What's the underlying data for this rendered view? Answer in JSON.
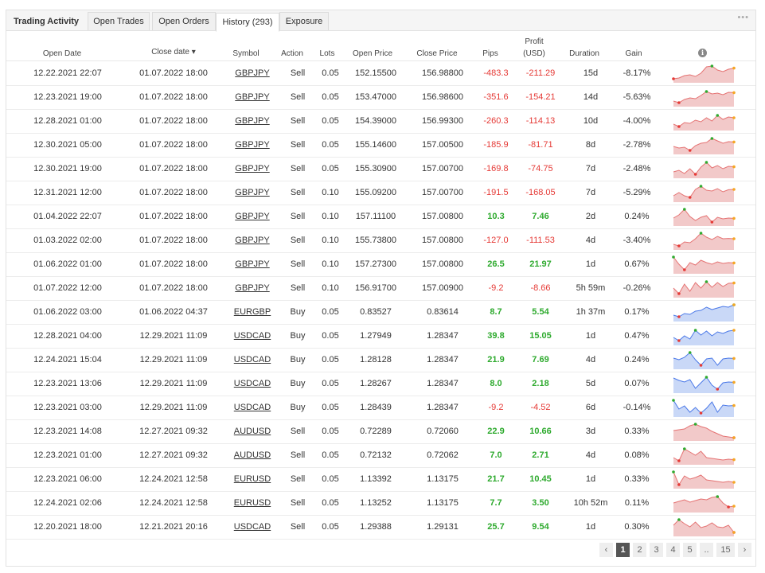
{
  "tabs": [
    "Trading Activity",
    "Open Trades",
    "Open Orders",
    "History (293)",
    "Exposure"
  ],
  "more_label": "•••",
  "columns": {
    "open_date": "Open Date",
    "close_date": "Close date ▾",
    "symbol": "Symbol",
    "action": "Action",
    "lots": "Lots",
    "open_price": "Open Price",
    "close_price": "Close Price",
    "pips": "Pips",
    "profit_line1": "Profit",
    "profit_line2": "(USD)",
    "duration": "Duration",
    "gain": "Gain",
    "info": "i"
  },
  "colors": {
    "negative": "#e53935",
    "positive": "#2eaa2e",
    "sell_fill": "#f2c9c9",
    "buy_fill": "#c9d8f7"
  },
  "rows": [
    {
      "open": "12.22.2021 22:07",
      "close": "01.07.2022 18:00",
      "symbol": "GBPJPY",
      "action": "Sell",
      "lots": "0.05",
      "open_price": "152.15500",
      "close_price": "156.98800",
      "pips": "-483.3",
      "profit": "-211.29",
      "duration": "15d",
      "gain": "-8.17%",
      "spark": [
        0.15,
        0.2,
        0.35,
        0.4,
        0.3,
        0.5,
        0.9,
        0.95,
        0.7,
        0.6,
        0.75,
        0.82
      ]
    },
    {
      "open": "12.23.2021 19:00",
      "close": "01.07.2022 18:00",
      "symbol": "GBPJPY",
      "action": "Sell",
      "lots": "0.05",
      "open_price": "153.47000",
      "close_price": "156.98600",
      "pips": "-351.6",
      "profit": "-154.21",
      "duration": "14d",
      "gain": "-5.63%",
      "spark": [
        0.25,
        0.15,
        0.35,
        0.45,
        0.4,
        0.6,
        0.85,
        0.7,
        0.75,
        0.65,
        0.8,
        0.78
      ]
    },
    {
      "open": "12.28.2021 01:00",
      "close": "01.07.2022 18:00",
      "symbol": "GBPJPY",
      "action": "Sell",
      "lots": "0.05",
      "open_price": "154.39000",
      "close_price": "156.99300",
      "pips": "-260.3",
      "profit": "-114.13",
      "duration": "10d",
      "gain": "-4.00%",
      "spark": [
        0.3,
        0.15,
        0.4,
        0.35,
        0.55,
        0.45,
        0.7,
        0.5,
        0.85,
        0.6,
        0.75,
        0.7
      ]
    },
    {
      "open": "12.30.2021 05:00",
      "close": "01.07.2022 18:00",
      "symbol": "GBPJPY",
      "action": "Sell",
      "lots": "0.05",
      "open_price": "155.14600",
      "close_price": "157.00500",
      "pips": "-185.9",
      "profit": "-81.71",
      "duration": "8d",
      "gain": "-2.78%",
      "spark": [
        0.4,
        0.3,
        0.35,
        0.15,
        0.45,
        0.6,
        0.65,
        0.9,
        0.75,
        0.6,
        0.7,
        0.68
      ]
    },
    {
      "open": "12.30.2021 19:00",
      "close": "01.07.2022 18:00",
      "symbol": "GBPJPY",
      "action": "Sell",
      "lots": "0.05",
      "open_price": "155.30900",
      "close_price": "157.00700",
      "pips": "-169.8",
      "profit": "-74.75",
      "duration": "7d",
      "gain": "-2.48%",
      "spark": [
        0.3,
        0.4,
        0.2,
        0.5,
        0.15,
        0.6,
        0.9,
        0.55,
        0.7,
        0.5,
        0.65,
        0.62
      ]
    },
    {
      "open": "12.31.2021 12:00",
      "close": "01.07.2022 18:00",
      "symbol": "GBPJPY",
      "action": "Sell",
      "lots": "0.10",
      "open_price": "155.09200",
      "close_price": "157.00700",
      "pips": "-191.5",
      "profit": "-168.05",
      "duration": "7d",
      "gain": "-5.29%",
      "spark": [
        0.3,
        0.5,
        0.3,
        0.2,
        0.7,
        0.9,
        0.65,
        0.6,
        0.75,
        0.55,
        0.68,
        0.7
      ]
    },
    {
      "open": "01.04.2022 22:07",
      "close": "01.07.2022 18:00",
      "symbol": "GBPJPY",
      "action": "Sell",
      "lots": "0.10",
      "open_price": "157.11100",
      "close_price": "157.00800",
      "pips": "10.3",
      "profit": "7.46",
      "duration": "2d",
      "gain": "0.24%",
      "spark": [
        0.4,
        0.6,
        0.95,
        0.5,
        0.25,
        0.45,
        0.55,
        0.15,
        0.45,
        0.35,
        0.4,
        0.38
      ]
    },
    {
      "open": "01.03.2022 02:00",
      "close": "01.07.2022 18:00",
      "symbol": "GBPJPY",
      "action": "Sell",
      "lots": "0.10",
      "open_price": "155.73800",
      "close_price": "157.00800",
      "pips": "-127.0",
      "profit": "-111.53",
      "duration": "4d",
      "gain": "-3.40%",
      "spark": [
        0.25,
        0.15,
        0.4,
        0.35,
        0.6,
        0.95,
        0.7,
        0.55,
        0.75,
        0.6,
        0.62,
        0.6
      ]
    },
    {
      "open": "01.06.2022 01:00",
      "close": "01.07.2022 18:00",
      "symbol": "GBPJPY",
      "action": "Sell",
      "lots": "0.10",
      "open_price": "157.27300",
      "close_price": "157.00800",
      "pips": "26.5",
      "profit": "21.97",
      "duration": "1d",
      "gain": "0.67%",
      "spark": [
        0.95,
        0.5,
        0.15,
        0.6,
        0.45,
        0.75,
        0.6,
        0.5,
        0.65,
        0.55,
        0.6,
        0.58
      ]
    },
    {
      "open": "01.07.2022 12:00",
      "close": "01.07.2022 18:00",
      "symbol": "GBPJPY",
      "action": "Sell",
      "lots": "0.10",
      "open_price": "156.91700",
      "close_price": "157.00900",
      "pips": "-9.2",
      "profit": "-8.66",
      "duration": "5h 59m",
      "gain": "-0.26%",
      "spark": [
        0.5,
        0.15,
        0.75,
        0.3,
        0.85,
        0.5,
        0.9,
        0.55,
        0.85,
        0.6,
        0.8,
        0.82
      ]
    },
    {
      "open": "01.06.2022 03:00",
      "close": "01.06.2022 04:37",
      "symbol": "EURGBP",
      "action": "Buy",
      "lots": "0.05",
      "open_price": "0.83527",
      "close_price": "0.83614",
      "pips": "8.7",
      "profit": "5.54",
      "duration": "1h 37m",
      "gain": "0.17%",
      "spark": [
        0.3,
        0.2,
        0.4,
        0.35,
        0.55,
        0.6,
        0.8,
        0.65,
        0.75,
        0.85,
        0.8,
        0.95
      ]
    },
    {
      "open": "12.28.2021 04:00",
      "close": "12.29.2021 11:09",
      "symbol": "USDCAD",
      "action": "Buy",
      "lots": "0.05",
      "open_price": "1.27949",
      "close_price": "1.28347",
      "pips": "39.8",
      "profit": "15.05",
      "duration": "1d",
      "gain": "0.47%",
      "spark": [
        0.4,
        0.2,
        0.5,
        0.3,
        0.85,
        0.55,
        0.8,
        0.5,
        0.75,
        0.65,
        0.8,
        0.85
      ]
    },
    {
      "open": "12.24.2021 15:04",
      "close": "12.29.2021 11:09",
      "symbol": "USDCAD",
      "action": "Buy",
      "lots": "0.05",
      "open_price": "1.28128",
      "close_price": "1.28347",
      "pips": "21.9",
      "profit": "7.69",
      "duration": "4d",
      "gain": "0.24%",
      "spark": [
        0.6,
        0.5,
        0.65,
        0.95,
        0.5,
        0.15,
        0.55,
        0.6,
        0.15,
        0.55,
        0.6,
        0.58
      ]
    },
    {
      "open": "12.23.2021 13:06",
      "close": "12.29.2021 11:09",
      "symbol": "USDCAD",
      "action": "Buy",
      "lots": "0.05",
      "open_price": "1.28267",
      "close_price": "1.28347",
      "pips": "8.0",
      "profit": "2.18",
      "duration": "5d",
      "gain": "0.07%",
      "spark": [
        0.85,
        0.7,
        0.6,
        0.75,
        0.2,
        0.55,
        0.9,
        0.4,
        0.15,
        0.55,
        0.6,
        0.58
      ]
    },
    {
      "open": "12.23.2021 03:00",
      "close": "12.29.2021 11:09",
      "symbol": "USDCAD",
      "action": "Buy",
      "lots": "0.05",
      "open_price": "1.28439",
      "close_price": "1.28347",
      "pips": "-9.2",
      "profit": "-4.52",
      "duration": "6d",
      "gain": "-0.14%",
      "spark": [
        0.95,
        0.4,
        0.6,
        0.2,
        0.5,
        0.15,
        0.45,
        0.85,
        0.2,
        0.65,
        0.6,
        0.62
      ]
    },
    {
      "open": "12.23.2021 14:08",
      "close": "12.27.2021 09:32",
      "symbol": "AUDUSD",
      "action": "Sell",
      "lots": "0.05",
      "open_price": "0.72289",
      "close_price": "0.72060",
      "pips": "22.9",
      "profit": "10.66",
      "duration": "3d",
      "gain": "0.33%",
      "spark": [
        0.55,
        0.6,
        0.65,
        0.85,
        0.95,
        0.8,
        0.7,
        0.5,
        0.35,
        0.2,
        0.15,
        0.1
      ]
    },
    {
      "open": "12.23.2021 01:00",
      "close": "12.27.2021 09:32",
      "symbol": "AUDUSD",
      "action": "Sell",
      "lots": "0.05",
      "open_price": "0.72132",
      "close_price": "0.72062",
      "pips": "7.0",
      "profit": "2.71",
      "duration": "4d",
      "gain": "0.08%",
      "spark": [
        0.35,
        0.15,
        0.9,
        0.7,
        0.5,
        0.75,
        0.35,
        0.3,
        0.25,
        0.2,
        0.25,
        0.22
      ]
    },
    {
      "open": "12.23.2021 06:00",
      "close": "12.24.2021 12:58",
      "symbol": "EURUSD",
      "action": "Sell",
      "lots": "0.05",
      "open_price": "1.13392",
      "close_price": "1.13175",
      "pips": "21.7",
      "profit": "10.45",
      "duration": "1d",
      "gain": "0.33%",
      "spark": [
        0.95,
        0.15,
        0.7,
        0.5,
        0.6,
        0.75,
        0.45,
        0.4,
        0.35,
        0.3,
        0.35,
        0.3
      ]
    },
    {
      "open": "12.24.2021 02:06",
      "close": "12.24.2021 12:58",
      "symbol": "EURUSD",
      "action": "Sell",
      "lots": "0.05",
      "open_price": "1.13252",
      "close_price": "1.13175",
      "pips": "7.7",
      "profit": "3.50",
      "duration": "10h 52m",
      "gain": "0.11%",
      "spark": [
        0.5,
        0.6,
        0.7,
        0.55,
        0.65,
        0.75,
        0.7,
        0.85,
        0.9,
        0.5,
        0.25,
        0.3
      ]
    },
    {
      "open": "12.20.2021 18:00",
      "close": "12.21.2021 20:16",
      "symbol": "USDCAD",
      "action": "Sell",
      "lots": "0.05",
      "open_price": "1.29388",
      "close_price": "1.29131",
      "pips": "25.7",
      "profit": "9.54",
      "duration": "1d",
      "gain": "0.30%",
      "spark": [
        0.6,
        0.95,
        0.7,
        0.5,
        0.8,
        0.45,
        0.55,
        0.75,
        0.5,
        0.45,
        0.6,
        0.15
      ]
    }
  ],
  "pagination": {
    "prev": "‹",
    "pages": [
      "1",
      "2",
      "3",
      "4",
      "5"
    ],
    "ellipsis": "..",
    "last": "15",
    "next": "›",
    "current": "1"
  }
}
